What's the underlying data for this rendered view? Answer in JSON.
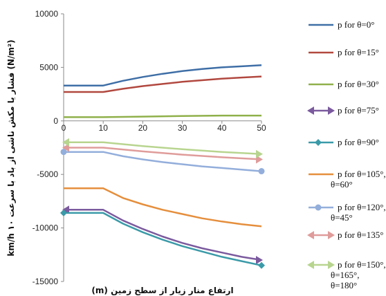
{
  "chart_data": {
    "type": "line",
    "title": "",
    "xlabel": "ارتفاع منار زیار از سطح زمین (m)",
    "ylabel": "(N/m²) فشار یا مکش ناشی از باد با سرعت ۱۰ km/h",
    "xlim": [
      0,
      50
    ],
    "ylim": [
      -15000,
      10000
    ],
    "x_ticks": [
      "0",
      "10",
      "20",
      "30",
      "40",
      "50"
    ],
    "y_ticks": [
      "10000",
      "5000",
      "0",
      "-5000",
      "-10000",
      "-15000"
    ],
    "x_tick_values": [
      0,
      10,
      20,
      30,
      40,
      50
    ],
    "y_tick_values": [
      10000,
      5000,
      0,
      -5000,
      -10000,
      -15000
    ],
    "grid": false,
    "legend_position": "right",
    "series": [
      {
        "name": "p for θ=0°",
        "color": "#3e6ea6",
        "marker": "none",
        "x": [
          0,
          10,
          15,
          20,
          25,
          30,
          35,
          40,
          45,
          50
        ],
        "y": [
          3300,
          3300,
          3750,
          4100,
          4400,
          4650,
          4850,
          5000,
          5100,
          5200
        ]
      },
      {
        "name": "p for θ=15°",
        "color": "#b1483f",
        "marker": "none",
        "x": [
          0,
          10,
          15,
          20,
          25,
          30,
          35,
          40,
          45,
          50
        ],
        "y": [
          2700,
          2700,
          3000,
          3250,
          3450,
          3650,
          3800,
          3950,
          4050,
          4150
        ]
      },
      {
        "name": "p for θ=30°",
        "color": "#8fb04a",
        "marker": "none",
        "x": [
          0,
          10,
          20,
          30,
          40,
          50
        ],
        "y": [
          350,
          350,
          400,
          450,
          500,
          500
        ]
      },
      {
        "name": "p for θ=75°",
        "color": "#7b5a9e",
        "marker": "arrow",
        "x": [
          0,
          10,
          15,
          20,
          25,
          30,
          35,
          40,
          45,
          50
        ],
        "y": [
          -8300,
          -8300,
          -9300,
          -10100,
          -10800,
          -11400,
          -11900,
          -12300,
          -12700,
          -13000
        ]
      },
      {
        "name": "p for θ=90°",
        "color": "#3a9aa8",
        "marker": "diamond",
        "x": [
          0,
          10,
          15,
          20,
          25,
          30,
          35,
          40,
          45,
          50
        ],
        "y": [
          -8600,
          -8600,
          -9600,
          -10400,
          -11100,
          -11700,
          -12200,
          -12700,
          -13100,
          -13500
        ]
      },
      {
        "name": "p for θ=105°, θ=60°",
        "color": "#e58e3c",
        "marker": "none",
        "x": [
          0,
          10,
          15,
          20,
          25,
          30,
          35,
          40,
          45,
          50
        ],
        "y": [
          -6300,
          -6300,
          -7200,
          -7800,
          -8300,
          -8700,
          -9100,
          -9400,
          -9650,
          -9850
        ]
      },
      {
        "name": "p for θ=120°, θ=45°",
        "color": "#93aedb",
        "marker": "circle",
        "x": [
          0,
          10,
          15,
          20,
          25,
          30,
          35,
          40,
          45,
          50
        ],
        "y": [
          -2900,
          -2900,
          -3300,
          -3600,
          -3850,
          -4050,
          -4250,
          -4400,
          -4550,
          -4700
        ]
      },
      {
        "name": "p for θ=135°",
        "color": "#df9c9a",
        "marker": "arrow",
        "x": [
          0,
          10,
          20,
          30,
          40,
          50
        ],
        "y": [
          -2500,
          -2500,
          -2850,
          -3150,
          -3400,
          -3600
        ]
      },
      {
        "name": "p for θ=150°, θ=165°, θ=180°",
        "color": "#b8d58f",
        "marker": "arrow",
        "x": [
          0,
          10,
          20,
          30,
          40,
          50
        ],
        "y": [
          -2000,
          -2000,
          -2350,
          -2650,
          -2900,
          -3100
        ]
      }
    ]
  }
}
